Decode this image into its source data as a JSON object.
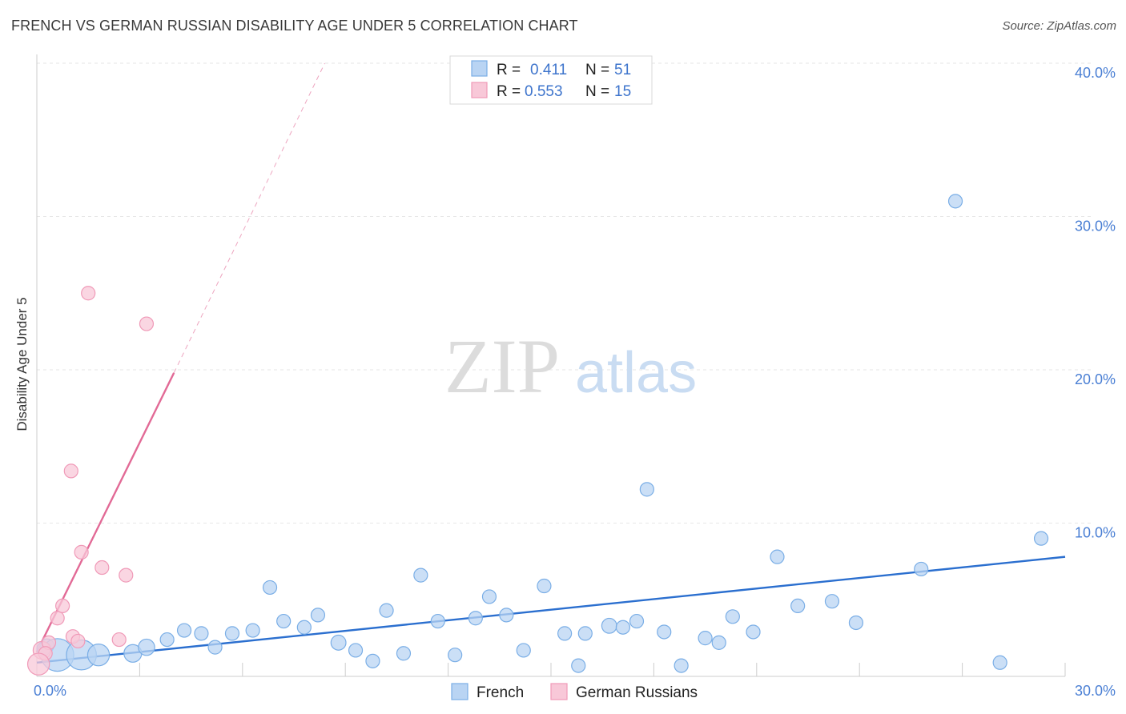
{
  "title": "FRENCH VS GERMAN RUSSIAN DISABILITY AGE UNDER 5 CORRELATION CHART",
  "source": "Source: ZipAtlas.com",
  "watermark": {
    "zip": "ZIP",
    "atlas": "atlas"
  },
  "chart_data": {
    "type": "scatter",
    "ylabel": "Disability Age Under 5",
    "xlim": [
      0,
      30
    ],
    "ylim": [
      0,
      40
    ],
    "x_tick_labels": [
      {
        "value": 0,
        "label": "0.0%"
      },
      {
        "value": 30,
        "label": "30.0%"
      }
    ],
    "y_tick_labels": [
      {
        "value": 10,
        "label": "10.0%"
      },
      {
        "value": 20,
        "label": "20.0%"
      },
      {
        "value": 30,
        "label": "30.0%"
      },
      {
        "value": 40,
        "label": "40.0%"
      }
    ],
    "legend": [
      {
        "series": "French",
        "r_label": "R =",
        "r_value": "0.411",
        "n_label": "N =",
        "n_value": "51"
      },
      {
        "series": "German Russians",
        "r_label": "R =",
        "r_value": "0.553",
        "n_label": "N =",
        "n_value": "15"
      }
    ],
    "series": [
      {
        "name": "French",
        "color": "#7aaee6",
        "fill": "#b9d4f3",
        "line_color": "#2b6fcf",
        "trend": {
          "x": [
            0,
            30
          ],
          "y": [
            0.9,
            7.8
          ]
        },
        "points": [
          {
            "x": 0.3,
            "y": 2.0,
            "s": 1
          },
          {
            "x": 0.6,
            "y": 1.4,
            "s": 2.4
          },
          {
            "x": 1.3,
            "y": 1.4,
            "s": 2.2
          },
          {
            "x": 1.8,
            "y": 1.4,
            "s": 1.6
          },
          {
            "x": 2.8,
            "y": 1.5,
            "s": 1.3
          },
          {
            "x": 3.2,
            "y": 1.9,
            "s": 1.2
          },
          {
            "x": 3.8,
            "y": 2.4,
            "s": 1
          },
          {
            "x": 4.3,
            "y": 3.0,
            "s": 1
          },
          {
            "x": 4.8,
            "y": 2.8,
            "s": 1
          },
          {
            "x": 5.2,
            "y": 1.9,
            "s": 1
          },
          {
            "x": 5.7,
            "y": 2.8,
            "s": 1
          },
          {
            "x": 6.3,
            "y": 3.0,
            "s": 1
          },
          {
            "x": 6.8,
            "y": 5.8,
            "s": 1
          },
          {
            "x": 7.2,
            "y": 3.6,
            "s": 1
          },
          {
            "x": 7.8,
            "y": 3.2,
            "s": 1
          },
          {
            "x": 8.2,
            "y": 4.0,
            "s": 1
          },
          {
            "x": 8.8,
            "y": 2.2,
            "s": 1.1
          },
          {
            "x": 9.3,
            "y": 1.7,
            "s": 1
          },
          {
            "x": 9.8,
            "y": 1.0,
            "s": 1
          },
          {
            "x": 10.2,
            "y": 4.3,
            "s": 1
          },
          {
            "x": 10.7,
            "y": 1.5,
            "s": 1
          },
          {
            "x": 11.2,
            "y": 6.6,
            "s": 1
          },
          {
            "x": 11.7,
            "y": 3.6,
            "s": 1
          },
          {
            "x": 12.2,
            "y": 1.4,
            "s": 1
          },
          {
            "x": 12.8,
            "y": 3.8,
            "s": 1
          },
          {
            "x": 13.2,
            "y": 5.2,
            "s": 1
          },
          {
            "x": 13.7,
            "y": 4.0,
            "s": 1
          },
          {
            "x": 14.2,
            "y": 1.7,
            "s": 1
          },
          {
            "x": 14.8,
            "y": 5.9,
            "s": 1
          },
          {
            "x": 15.4,
            "y": 2.8,
            "s": 1
          },
          {
            "x": 15.8,
            "y": 0.7,
            "s": 1
          },
          {
            "x": 16.0,
            "y": 2.8,
            "s": 1
          },
          {
            "x": 16.7,
            "y": 3.3,
            "s": 1.1
          },
          {
            "x": 17.1,
            "y": 3.2,
            "s": 1
          },
          {
            "x": 17.5,
            "y": 3.6,
            "s": 1
          },
          {
            "x": 17.8,
            "y": 12.2,
            "s": 1
          },
          {
            "x": 18.3,
            "y": 2.9,
            "s": 1
          },
          {
            "x": 18.8,
            "y": 0.7,
            "s": 1
          },
          {
            "x": 19.5,
            "y": 2.5,
            "s": 1
          },
          {
            "x": 19.9,
            "y": 2.2,
            "s": 1
          },
          {
            "x": 20.3,
            "y": 3.9,
            "s": 1
          },
          {
            "x": 20.9,
            "y": 2.9,
            "s": 1
          },
          {
            "x": 21.6,
            "y": 7.8,
            "s": 1
          },
          {
            "x": 22.2,
            "y": 4.6,
            "s": 1
          },
          {
            "x": 23.2,
            "y": 4.9,
            "s": 1
          },
          {
            "x": 23.9,
            "y": 3.5,
            "s": 1
          },
          {
            "x": 25.8,
            "y": 7.0,
            "s": 1
          },
          {
            "x": 26.8,
            "y": 31.0,
            "s": 1
          },
          {
            "x": 28.1,
            "y": 0.9,
            "s": 1
          },
          {
            "x": 29.3,
            "y": 9.0,
            "s": 1
          },
          {
            "x": 0.2,
            "y": 1.8,
            "s": 1
          }
        ]
      },
      {
        "name": "German Russians",
        "color": "#f09ab8",
        "fill": "#f8c8d8",
        "line_color": "#e26a96",
        "trend": {
          "x": [
            0,
            4.0
          ],
          "y": [
            1.6,
            19.8
          ]
        },
        "trend_extension": {
          "x": [
            4.0,
            8.4
          ],
          "y": [
            19.8,
            40.0
          ]
        },
        "points": [
          {
            "x": 0.15,
            "y": 1.7,
            "s": 1.3
          },
          {
            "x": 0.35,
            "y": 2.2,
            "s": 1
          },
          {
            "x": 0.6,
            "y": 3.8,
            "s": 1
          },
          {
            "x": 0.75,
            "y": 4.6,
            "s": 1
          },
          {
            "x": 1.0,
            "y": 13.4,
            "s": 1
          },
          {
            "x": 1.05,
            "y": 2.6,
            "s": 1
          },
          {
            "x": 1.2,
            "y": 2.3,
            "s": 1
          },
          {
            "x": 1.3,
            "y": 8.1,
            "s": 1
          },
          {
            "x": 1.5,
            "y": 25.0,
            "s": 1
          },
          {
            "x": 1.9,
            "y": 7.1,
            "s": 1
          },
          {
            "x": 2.4,
            "y": 2.4,
            "s": 1
          },
          {
            "x": 2.6,
            "y": 6.6,
            "s": 1
          },
          {
            "x": 3.2,
            "y": 23.0,
            "s": 1
          },
          {
            "x": 0.25,
            "y": 1.5,
            "s": 1
          },
          {
            "x": 0.05,
            "y": 0.8,
            "s": 1.6
          }
        ]
      }
    ]
  }
}
